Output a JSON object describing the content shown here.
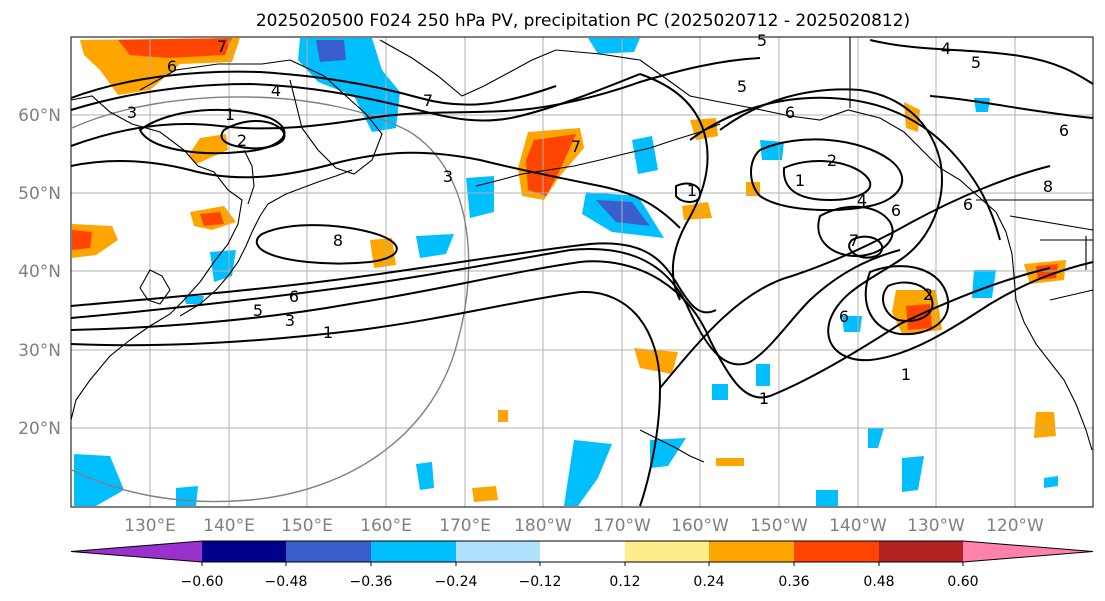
{
  "title": "2025020500 F024 250 hPa PV, precipitation PC (2025020712 - 2025020812)",
  "lat_labels": [
    "60°N",
    "50°N",
    "40°N",
    "30°N",
    "20°N"
  ],
  "lon_labels": [
    "130°E",
    "140°E",
    "150°E",
    "160°E",
    "170°E",
    "180°W",
    "170°W",
    "160°W",
    "150°W",
    "140°W",
    "130°W",
    "120°W"
  ],
  "contour_labels": [
    "7",
    "6",
    "3",
    "4",
    "1",
    "2",
    "3",
    "8",
    "6",
    "5",
    "3",
    "1",
    "7",
    "5",
    "2",
    "1",
    "4",
    "6",
    "7",
    "8",
    "1",
    "2",
    "6",
    "1",
    "5",
    "4",
    "5",
    "6",
    "7",
    "1",
    "6",
    "6"
  ],
  "colorbar": {
    "tick_labels": [
      "−0.60",
      "−0.48",
      "−0.36",
      "−0.24",
      "−0.12",
      "0.12",
      "0.24",
      "0.36",
      "0.48",
      "0.60"
    ],
    "colors": [
      "#9932cc",
      "#00008b",
      "#3a5fcd",
      "#00bfff",
      "#b0e2ff",
      "#ffffff",
      "#ffec8b",
      "#ffa500",
      "#ff4500",
      "#b22222",
      "#ff82ab"
    ]
  }
}
